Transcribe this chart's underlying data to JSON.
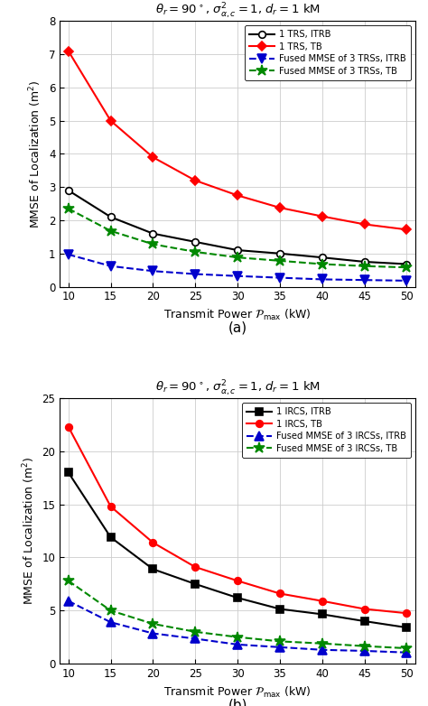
{
  "x": [
    10,
    15,
    20,
    25,
    30,
    35,
    40,
    45,
    50
  ],
  "subplot_a": {
    "title": "$\\theta_r=90^\\circ$, $\\sigma_{\\alpha,c}^2=1$, $d_r=1$ kM",
    "series": [
      {
        "label": "1 TRS, ITRB",
        "color": "#000000",
        "marker": "o",
        "markerfacecolor": "white",
        "dashed": false,
        "y": [
          2.9,
          2.1,
          1.6,
          1.35,
          1.1,
          1.0,
          0.88,
          0.75,
          0.68
        ]
      },
      {
        "label": "1 TRS, TB",
        "color": "#ff0000",
        "marker": "D",
        "markerfacecolor": "#ff0000",
        "dashed": false,
        "y": [
          7.1,
          5.0,
          3.9,
          3.2,
          2.75,
          2.38,
          2.12,
          1.88,
          1.72
        ]
      },
      {
        "label": "Fused MMSE of 3 TRSs, ITRB",
        "color": "#0000cc",
        "marker": "v",
        "markerfacecolor": "#0000cc",
        "dashed": true,
        "y": [
          0.97,
          0.62,
          0.47,
          0.38,
          0.32,
          0.27,
          0.22,
          0.2,
          0.18
        ]
      },
      {
        "label": "Fused MMSE of 3 TRSs, TB",
        "color": "#008800",
        "marker": "*",
        "markerfacecolor": "#008800",
        "dashed": true,
        "y": [
          2.35,
          1.68,
          1.28,
          1.05,
          0.88,
          0.78,
          0.68,
          0.62,
          0.58
        ]
      }
    ],
    "ylabel": "MMSE of Localization (m$^2$)",
    "xlabel": "Transmit Power $\\mathcal{P}_{\\mathrm{max}}$ (kW)",
    "ylim": [
      0,
      8
    ],
    "yticks": [
      0,
      1,
      2,
      3,
      4,
      5,
      6,
      7,
      8
    ],
    "sublabel": "(a)"
  },
  "subplot_b": {
    "title": "$\\theta_r=90^\\circ$, $\\sigma_{\\alpha,c}^2=1$, $d_r=1$ kM",
    "series": [
      {
        "label": "1 IRCS, ITRB",
        "color": "#000000",
        "marker": "s",
        "markerfacecolor": "#000000",
        "dashed": false,
        "y": [
          18.0,
          11.9,
          8.9,
          7.5,
          6.2,
          5.15,
          4.65,
          4.0,
          3.4
        ]
      },
      {
        "label": "1 IRCS, TB",
        "color": "#ff0000",
        "marker": "o",
        "markerfacecolor": "#ff0000",
        "dashed": false,
        "y": [
          22.3,
          14.8,
          11.4,
          9.1,
          7.8,
          6.6,
          5.9,
          5.15,
          4.75
        ]
      },
      {
        "label": "Fused MMSE of 3 IRCSs, ITRB",
        "color": "#0000cc",
        "marker": "^",
        "markerfacecolor": "#0000cc",
        "dashed": true,
        "y": [
          5.9,
          3.9,
          2.85,
          2.35,
          1.8,
          1.55,
          1.3,
          1.2,
          1.05
        ]
      },
      {
        "label": "Fused MMSE of 3 IRCSs, TB",
        "color": "#008800",
        "marker": "*",
        "markerfacecolor": "#008800",
        "dashed": true,
        "y": [
          7.8,
          5.0,
          3.75,
          3.0,
          2.5,
          2.1,
          1.9,
          1.65,
          1.45
        ]
      }
    ],
    "ylabel": "MMSE of Localization (m$^2$)",
    "xlabel": "Transmit Power $\\mathcal{P}_{\\mathrm{max}}$ (kW)",
    "ylim": [
      0,
      25
    ],
    "yticks": [
      0,
      5,
      10,
      15,
      20,
      25
    ],
    "sublabel": "(b)"
  }
}
